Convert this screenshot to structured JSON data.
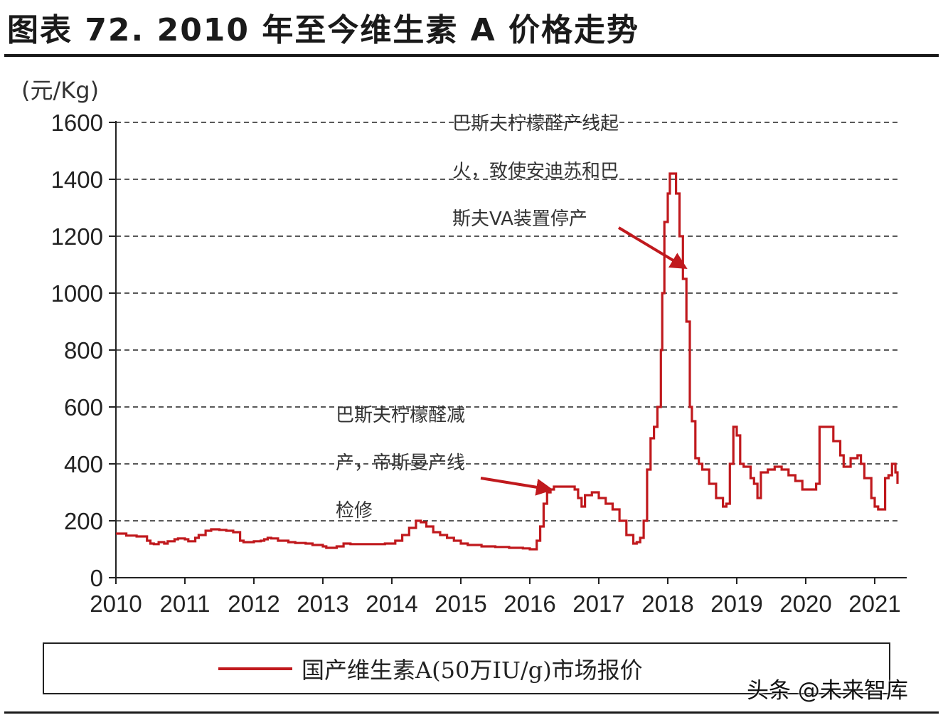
{
  "figure_title": "图表 72. 2010 年至今维生素 A 价格走势",
  "watermark": "头条 @未来智库",
  "colors": {
    "series": "#c0191d",
    "grid": "#222222",
    "text": "#222222"
  },
  "chart_data": {
    "type": "line",
    "title": "",
    "unit_label": "(元/Kg)",
    "xlabel": "",
    "ylabel": "",
    "ylim": [
      0,
      1600
    ],
    "xlim": [
      2010,
      2021.35
    ],
    "yticks": [
      "0",
      "200",
      "400",
      "600",
      "800",
      "1000",
      "1200",
      "1400",
      "1600"
    ],
    "xticks": [
      "2010",
      "2011",
      "2012",
      "2013",
      "2014",
      "2015",
      "2016",
      "2017",
      "2018",
      "2019",
      "2020",
      "2021"
    ],
    "grid": "horizontal dashed",
    "legend_position": "bottom",
    "series": [
      {
        "name": "国产维生素A(50万IU/g)市场报价",
        "color": "#c0191d",
        "x": [
          2010.0,
          2010.15,
          2010.3,
          2010.45,
          2010.5,
          2010.55,
          2010.62,
          2010.7,
          2010.75,
          2010.85,
          2010.9,
          2011.0,
          2011.05,
          2011.15,
          2011.2,
          2011.3,
          2011.38,
          2011.45,
          2011.5,
          2011.6,
          2011.7,
          2011.8,
          2011.85,
          2011.95,
          2012.0,
          2012.1,
          2012.15,
          2012.2,
          2012.25,
          2012.35,
          2012.5,
          2012.6,
          2012.75,
          2012.85,
          2013.0,
          2013.05,
          2013.2,
          2013.3,
          2013.4,
          2013.5,
          2013.7,
          2013.9,
          2014.0,
          2014.05,
          2014.15,
          2014.25,
          2014.35,
          2014.42,
          2014.5,
          2014.6,
          2014.7,
          2014.8,
          2014.9,
          2015.0,
          2015.1,
          2015.2,
          2015.3,
          2015.5,
          2015.7,
          2015.9,
          2016.0,
          2016.1,
          2016.15,
          2016.2,
          2016.25,
          2016.3,
          2016.35,
          2016.45,
          2016.55,
          2016.65,
          2016.7,
          2016.75,
          2016.8,
          2016.9,
          2017.0,
          2017.1,
          2017.2,
          2017.3,
          2017.4,
          2017.5,
          2017.55,
          2017.6,
          2017.65,
          2017.7,
          2017.75,
          2017.8,
          2017.85,
          2017.9,
          2017.92,
          2017.95,
          2018.0,
          2018.03,
          2018.07,
          2018.12,
          2018.17,
          2018.22,
          2018.27,
          2018.32,
          2018.35,
          2018.4,
          2018.45,
          2018.5,
          2018.6,
          2018.7,
          2018.8,
          2018.85,
          2018.9,
          2018.95,
          2019.0,
          2019.05,
          2019.1,
          2019.2,
          2019.25,
          2019.3,
          2019.35,
          2019.45,
          2019.55,
          2019.65,
          2019.75,
          2019.85,
          2019.95,
          2020.1,
          2020.15,
          2020.2,
          2020.3,
          2020.4,
          2020.5,
          2020.55,
          2020.65,
          2020.75,
          2020.8,
          2020.85,
          2020.95,
          2021.0,
          2021.05,
          2021.15,
          2021.2,
          2021.25,
          2021.3,
          2021.33
        ],
        "y": [
          155,
          148,
          145,
          130,
          120,
          118,
          125,
          120,
          128,
          135,
          138,
          135,
          128,
          140,
          150,
          165,
          170,
          170,
          168,
          165,
          160,
          130,
          125,
          125,
          128,
          130,
          135,
          140,
          138,
          130,
          125,
          122,
          120,
          115,
          110,
          105,
          110,
          120,
          118,
          118,
          118,
          120,
          120,
          130,
          150,
          175,
          200,
          195,
          180,
          160,
          150,
          140,
          130,
          120,
          115,
          115,
          110,
          108,
          105,
          103,
          100,
          130,
          180,
          260,
          300,
          310,
          320,
          320,
          320,
          310,
          280,
          250,
          290,
          300,
          280,
          260,
          240,
          200,
          150,
          120,
          125,
          140,
          200,
          380,
          490,
          530,
          600,
          800,
          1000,
          1250,
          1350,
          1420,
          1420,
          1350,
          1200,
          1050,
          900,
          600,
          550,
          420,
          400,
          380,
          330,
          280,
          250,
          260,
          400,
          530,
          500,
          400,
          390,
          350,
          330,
          280,
          370,
          380,
          390,
          380,
          360,
          340,
          310,
          310,
          330,
          530,
          530,
          480,
          430,
          390,
          420,
          430,
          400,
          350,
          280,
          250,
          240,
          350,
          360,
          400,
          370,
          330
        ]
      }
    ],
    "annotations": [
      {
        "lines": [
          "巴斯夫柠檬醛产线起",
          "火，致使安迪苏和巴",
          "斯夫VA装置停产"
        ],
        "points_to": {
          "x": 2018.25,
          "y": 1090
        }
      },
      {
        "lines": [
          "巴斯夫柠檬醛减",
          "产，帝斯曼产线",
          "检修"
        ],
        "points_to": {
          "x": 2016.3,
          "y": 310
        }
      }
    ]
  }
}
